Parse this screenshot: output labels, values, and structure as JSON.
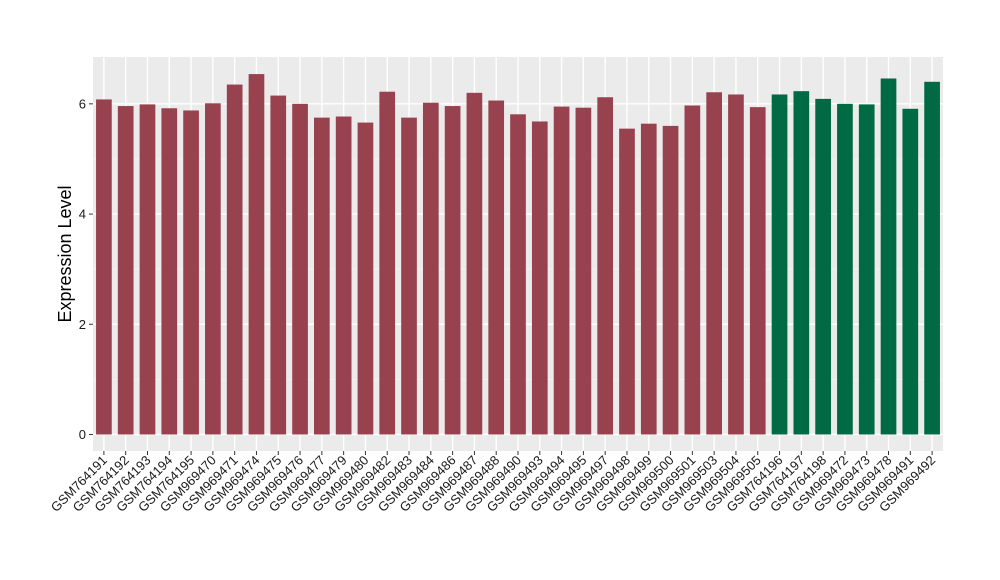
{
  "chart_data": {
    "type": "bar",
    "ylabel": "Expression Level",
    "xlabel": "",
    "ylim": [
      -0.3,
      6.85
    ],
    "yticks": [
      0,
      2,
      4,
      6
    ],
    "grid": true,
    "background": "#EBEBEB",
    "categories": [
      "GSM764191",
      "GSM764192",
      "GSM764193",
      "GSM764194",
      "GSM764195",
      "GSM969470",
      "GSM969471",
      "GSM969474",
      "GSM969475",
      "GSM969476",
      "GSM969477",
      "GSM969479",
      "GSM969480",
      "GSM969482",
      "GSM969483",
      "GSM969484",
      "GSM969486",
      "GSM969487",
      "GSM969488",
      "GSM969490",
      "GSM969493",
      "GSM969494",
      "GSM969495",
      "GSM969497",
      "GSM969498",
      "GSM969499",
      "GSM969500",
      "GSM969501",
      "GSM969503",
      "GSM969504",
      "GSM969505",
      "GSM764196",
      "GSM764197",
      "GSM764198",
      "GSM969472",
      "GSM969473",
      "GSM969478",
      "GSM969491",
      "GSM969492"
    ],
    "values": [
      6.08,
      5.96,
      5.99,
      5.92,
      5.88,
      6.01,
      6.35,
      6.54,
      6.15,
      6.0,
      5.75,
      5.77,
      5.66,
      6.22,
      5.75,
      6.02,
      5.96,
      6.2,
      6.06,
      5.81,
      5.68,
      5.95,
      5.93,
      6.12,
      5.55,
      5.64,
      5.6,
      5.97,
      6.21,
      6.17,
      5.94,
      6.17,
      6.23,
      6.09,
      6.0,
      5.99,
      6.46,
      5.91,
      6.4
    ],
    "colors": [
      "#99424F",
      "#99424F",
      "#99424F",
      "#99424F",
      "#99424F",
      "#99424F",
      "#99424F",
      "#99424F",
      "#99424F",
      "#99424F",
      "#99424F",
      "#99424F",
      "#99424F",
      "#99424F",
      "#99424F",
      "#99424F",
      "#99424F",
      "#99424F",
      "#99424F",
      "#99424F",
      "#99424F",
      "#99424F",
      "#99424F",
      "#99424F",
      "#99424F",
      "#99424F",
      "#99424F",
      "#99424F",
      "#99424F",
      "#99424F",
      "#99424F",
      "#006A45",
      "#006A45",
      "#006A45",
      "#006A45",
      "#006A45",
      "#006A45",
      "#006A45",
      "#006A45"
    ]
  }
}
